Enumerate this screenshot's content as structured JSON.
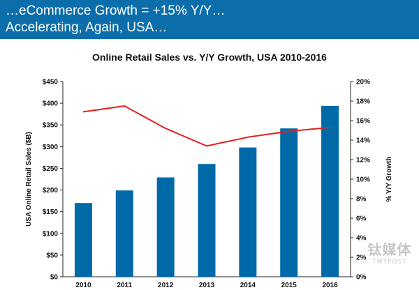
{
  "header": {
    "line1": "…eCommerce Growth = +15% Y/Y…",
    "line2": "Accelerating, Again, USA…",
    "background_color": "#0b6eab"
  },
  "chart_data": {
    "type": "bar",
    "title": "Online Retail Sales vs. Y/Y Growth, USA 2010-2016",
    "categories": [
      "2010",
      "2011",
      "2012",
      "2013",
      "2014",
      "2015",
      "2016"
    ],
    "series": [
      {
        "type": "bar",
        "axis": "left",
        "color": "#006aa8",
        "values": [
          170,
          199,
          229,
          260,
          298,
          342,
          394
        ]
      },
      {
        "type": "line",
        "axis": "right",
        "color": "#e8201c",
        "values": [
          16.9,
          17.5,
          15.2,
          13.4,
          14.3,
          14.9,
          15.3
        ]
      }
    ],
    "ylabel": "USA Online Retail Sales ($B)",
    "ylim": [
      0,
      450
    ],
    "yticks": [
      0,
      50,
      100,
      150,
      200,
      250,
      300,
      350,
      400,
      450
    ],
    "ytick_labels": [
      "$0",
      "$50",
      "$100",
      "$150",
      "$200",
      "$250",
      "$300",
      "$350",
      "$400",
      "$450"
    ],
    "y2label": "% Y/Y Growth",
    "y2lim": [
      0,
      20
    ],
    "y2ticks": [
      0,
      2,
      4,
      6,
      8,
      10,
      12,
      14,
      16,
      18,
      20
    ],
    "y2tick_labels": [
      "0%",
      "2%",
      "4%",
      "6%",
      "8%",
      "10%",
      "12%",
      "14%",
      "16%",
      "18%",
      "20%"
    ],
    "grid": false,
    "legend": "none"
  },
  "watermark": {
    "logo": "钛媒体",
    "sub": "TMTPOST"
  }
}
